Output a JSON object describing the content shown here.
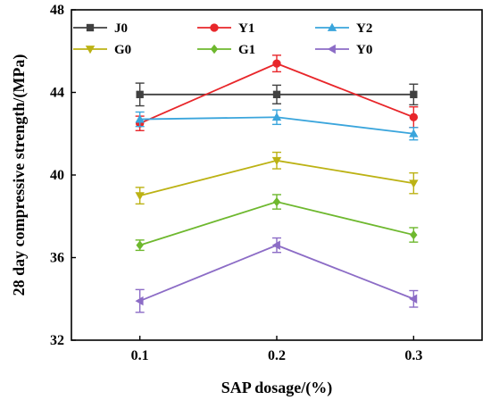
{
  "chart_data": {
    "type": "line",
    "xlabel": "SAP dosage/(%)",
    "ylabel": "28 day compressive strength/(MPa)",
    "x": [
      0.1,
      0.2,
      0.3
    ],
    "x_tick_labels": [
      "0.1",
      "0.2",
      "0.3"
    ],
    "xlim": [
      0.05,
      0.35
    ],
    "ylim": [
      32,
      48
    ],
    "y_ticks": [
      32,
      36,
      40,
      44,
      48
    ],
    "y_tick_labels": [
      "32",
      "36",
      "40",
      "44",
      "48"
    ],
    "grid": false,
    "legend_position": "top",
    "series": [
      {
        "name": "J0",
        "color": "#404040",
        "marker": "square",
        "values": [
          43.9,
          43.9,
          43.9
        ],
        "errors": [
          0.55,
          0.45,
          0.5
        ]
      },
      {
        "name": "Y1",
        "color": "#e8262a",
        "marker": "circle",
        "values": [
          42.5,
          45.4,
          42.8
        ],
        "errors": [
          0.35,
          0.4,
          0.5
        ]
      },
      {
        "name": "Y2",
        "color": "#3aa5dc",
        "marker": "triangle-up",
        "values": [
          42.7,
          42.8,
          42.0
        ],
        "errors": [
          0.35,
          0.35,
          0.3
        ]
      },
      {
        "name": "G0",
        "color": "#bcb214",
        "marker": "triangle-down",
        "values": [
          39.0,
          40.7,
          39.6
        ],
        "errors": [
          0.4,
          0.4,
          0.5
        ]
      },
      {
        "name": "G1",
        "color": "#6eb82e",
        "marker": "diamond",
        "values": [
          36.6,
          38.7,
          37.1
        ],
        "errors": [
          0.25,
          0.35,
          0.35
        ]
      },
      {
        "name": "Y0",
        "color": "#8c6cc6",
        "marker": "triangle-left",
        "values": [
          33.9,
          36.6,
          34.0
        ],
        "errors": [
          0.55,
          0.35,
          0.4
        ]
      }
    ]
  }
}
